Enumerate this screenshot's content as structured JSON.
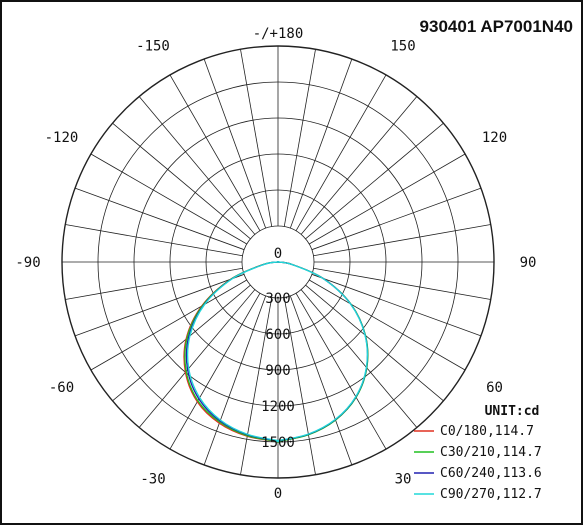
{
  "chart_data": {
    "type": "polar",
    "title": "930401 AP7001N40",
    "unit_label": "UNIT:cd",
    "angle_labels": {
      "top": "-/+180",
      "bottom": "0",
      "left": [
        {
          "angle": 150,
          "label": "-150"
        },
        {
          "angle": 120,
          "label": "-120"
        },
        {
          "angle": 90,
          "label": "-90"
        },
        {
          "angle": 60,
          "label": "-60"
        },
        {
          "angle": 30,
          "label": "-30"
        }
      ],
      "right": [
        {
          "angle": 150,
          "label": "150"
        },
        {
          "angle": 120,
          "label": "120"
        },
        {
          "angle": 90,
          "label": "90"
        },
        {
          "angle": 60,
          "label": "60"
        },
        {
          "angle": 30,
          "label": "30"
        }
      ]
    },
    "radial_ticks": [
      {
        "value": 0,
        "label": "0"
      },
      {
        "value": 300,
        "label": "300"
      },
      {
        "value": 600,
        "label": "600"
      },
      {
        "value": 900,
        "label": "900"
      },
      {
        "value": 1200,
        "label": "1200"
      },
      {
        "value": 1500,
        "label": "1500"
      }
    ],
    "r_max": 1800,
    "angle_step_deg": 10,
    "gamma": [
      0,
      10,
      20,
      30,
      40,
      50,
      60,
      70,
      80,
      90
    ],
    "series": [
      {
        "name": "C0/180,114.7",
        "color": "#e03020",
        "right": [
          1495,
          1460,
          1400,
          1300,
          1150,
          950,
          700,
          400,
          120,
          0
        ],
        "left": [
          1495,
          1475,
          1430,
          1345,
          1200,
          1000,
          735,
          420,
          130,
          0
        ]
      },
      {
        "name": "C30/210,114.7",
        "color": "#20c020",
        "right": [
          1495,
          1462,
          1402,
          1302,
          1152,
          952,
          702,
          402,
          120,
          0
        ],
        "left": [
          1495,
          1470,
          1420,
          1335,
          1190,
          990,
          725,
          415,
          128,
          0
        ]
      },
      {
        "name": "C60/240,113.6",
        "color": "#2020b0",
        "right": [
          1490,
          1458,
          1398,
          1298,
          1148,
          948,
          698,
          398,
          118,
          0
        ],
        "left": [
          1490,
          1462,
          1410,
          1318,
          1172,
          972,
          712,
          408,
          124,
          0
        ]
      },
      {
        "name": "C90/270,112.7",
        "color": "#20d8d8",
        "right": [
          1488,
          1456,
          1396,
          1296,
          1146,
          946,
          696,
          396,
          116,
          0
        ],
        "left": [
          1488,
          1458,
          1402,
          1305,
          1158,
          958,
          705,
          402,
          120,
          0
        ]
      }
    ],
    "grid": true,
    "legend_position": "bottom-right"
  }
}
